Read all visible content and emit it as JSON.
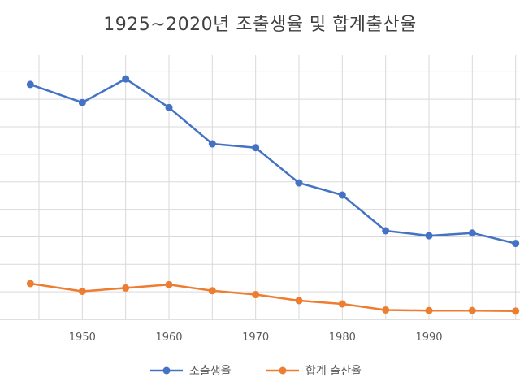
{
  "chart_data": {
    "type": "line",
    "title": "1925~2020년 조출생율 및 합계출산율",
    "x": [
      1944,
      1950,
      1955,
      1960,
      1965,
      1970,
      1975,
      1980,
      1985,
      1990,
      1995,
      2000
    ],
    "x_ticks": [
      "1950",
      "1960",
      "1970",
      "1980",
      "1990"
    ],
    "xlim": [
      1940.5,
      2000.5
    ],
    "ylim": [
      0,
      48
    ],
    "grid": true,
    "legend_position": "bottom",
    "series": [
      {
        "name": "조출생율",
        "color": "#4472C4",
        "values": [
          42.7,
          39.4,
          43.7,
          38.5,
          31.9,
          31.2,
          24.8,
          22.6,
          16.1,
          15.2,
          15.7,
          13.8
        ]
      },
      {
        "name": "합계 출산율",
        "color": "#ED7D31",
        "values": [
          6.5,
          5.1,
          5.7,
          6.3,
          5.2,
          4.5,
          3.4,
          2.8,
          1.7,
          1.6,
          1.6,
          1.5
        ]
      }
    ]
  }
}
